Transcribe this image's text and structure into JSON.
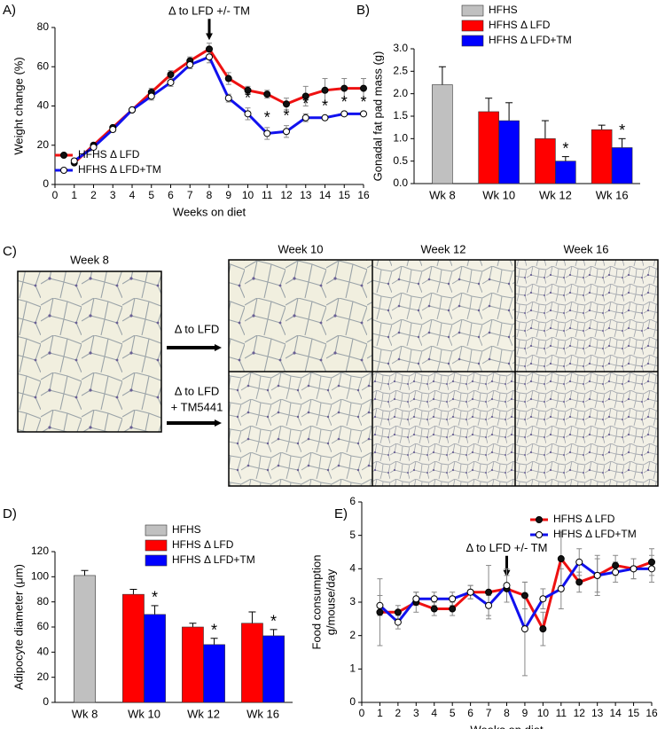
{
  "chart_data": [
    {
      "type": "line",
      "panel_label": "A)",
      "xlabel": "Weeks on diet",
      "ylabel": "Weight change (%)",
      "x": [
        1,
        2,
        3,
        4,
        5,
        6,
        7,
        8,
        9,
        10,
        11,
        12,
        13,
        14,
        15,
        16
      ],
      "xlim": [
        0,
        16
      ],
      "xticks": [
        0,
        1,
        2,
        3,
        4,
        5,
        6,
        7,
        8,
        9,
        10,
        11,
        12,
        13,
        14,
        15,
        16
      ],
      "ylim": [
        0,
        80
      ],
      "yticks": [
        0,
        20,
        40,
        60,
        80
      ],
      "legend": "lower left",
      "annotation": {
        "text": "Δ to LFD +/- TM",
        "x": 8,
        "y": 88
      },
      "series": [
        {
          "name": "HFHS Δ LFD",
          "color": "#ee1111",
          "marker_color": "#111111",
          "values": [
            11,
            20,
            29,
            38,
            47,
            56,
            63,
            69,
            54,
            48,
            46,
            41,
            45,
            48,
            49,
            49
          ],
          "errors": [
            1,
            1,
            1,
            1,
            2,
            2,
            2,
            3,
            3,
            2,
            2,
            3,
            5,
            6,
            5,
            5
          ]
        },
        {
          "name": "HFHS Δ LFD+TM",
          "color": "#1111ee",
          "marker_color": "#ffffff",
          "values": [
            12,
            19,
            28,
            38,
            45,
            52,
            61,
            65,
            44,
            36,
            26,
            27,
            34,
            34,
            36,
            36
          ],
          "errors": [
            1,
            1,
            1,
            1,
            2,
            2,
            2,
            3,
            2,
            3,
            3,
            3,
            2,
            1,
            1,
            1
          ],
          "significance": [
            null,
            null,
            null,
            null,
            null,
            null,
            null,
            null,
            null,
            "*",
            "*",
            "*",
            "*",
            "*",
            "*",
            "*"
          ]
        }
      ]
    },
    {
      "type": "bar",
      "panel_label": "B)",
      "ylabel": "Gonadal fat pad mass (g)",
      "categories": [
        "Wk 8",
        "Wk 10",
        "Wk 12",
        "Wk 16"
      ],
      "ylim": [
        0,
        3
      ],
      "yticks": [
        {
          "value": 0,
          "label": "0.0"
        },
        0.5,
        {
          "value": 1,
          "label": "1.0"
        },
        1.5,
        {
          "value": 2,
          "label": "2.0"
        },
        2.5,
        {
          "value": 3,
          "label": "3.0"
        }
      ],
      "legend": "top",
      "series": [
        {
          "name": "HFHS",
          "color": "#c0c0c0",
          "values": [
            2.2,
            null,
            null,
            null
          ],
          "errors": [
            0.4,
            null,
            null,
            null
          ]
        },
        {
          "name": "HFHS Δ LFD",
          "color": "#ff0000",
          "values": [
            null,
            1.6,
            1.0,
            1.2
          ],
          "errors": [
            null,
            0.3,
            0.4,
            0.1
          ]
        },
        {
          "name": "HFHS Δ LFD+TM",
          "color": "#0000ff",
          "values": [
            null,
            1.4,
            0.5,
            0.8
          ],
          "errors": [
            null,
            0.4,
            0.1,
            0.2
          ],
          "significance": [
            null,
            null,
            "*",
            "*"
          ]
        }
      ]
    },
    {
      "type": "bar",
      "panel_label": "D)",
      "ylabel": "Adipocyte diameter (μm)",
      "categories": [
        "Wk 8",
        "Wk 10",
        "Wk 12",
        "Wk 16"
      ],
      "ylim": [
        0,
        120
      ],
      "yticks": [
        0,
        20,
        40,
        60,
        80,
        100,
        120
      ],
      "legend": "top",
      "series": [
        {
          "name": "HFHS",
          "color": "#c0c0c0",
          "values": [
            101,
            null,
            null,
            null
          ],
          "errors": [
            4,
            null,
            null,
            null
          ]
        },
        {
          "name": "HFHS Δ LFD",
          "color": "#ff0000",
          "values": [
            null,
            86,
            60,
            63
          ],
          "errors": [
            null,
            4,
            3,
            9
          ]
        },
        {
          "name": "HFHS Δ LFD+TM",
          "color": "#0000ff",
          "values": [
            null,
            70,
            46,
            53
          ],
          "errors": [
            null,
            7,
            5,
            5
          ],
          "significance": [
            null,
            "*",
            "*",
            "*"
          ]
        }
      ]
    },
    {
      "type": "line",
      "panel_label": "E)",
      "xlabel": "Weeks on diet",
      "ylabel": [
        "Food consumption",
        "g/mouse/day"
      ],
      "x": [
        1,
        2,
        3,
        4,
        5,
        6,
        7,
        8,
        9,
        10,
        11,
        12,
        13,
        14,
        15,
        16
      ],
      "xlim": [
        0,
        16
      ],
      "xticks": [
        0,
        1,
        2,
        3,
        4,
        5,
        6,
        7,
        8,
        9,
        10,
        11,
        12,
        13,
        14,
        15,
        16
      ],
      "ylim": [
        0,
        6
      ],
      "yticks": [
        0,
        1,
        2,
        3,
        4,
        5,
        6
      ],
      "legend": "upper right",
      "annotation": {
        "text": "Δ to LFD +/- TM",
        "x": 8,
        "y": 4.6
      },
      "series": [
        {
          "name": "HFHS Δ LFD",
          "color": "#ee1111",
          "marker_color": "#111111",
          "values": [
            2.7,
            2.7,
            3.0,
            2.8,
            2.8,
            3.3,
            3.3,
            3.4,
            3.2,
            2.2,
            4.3,
            3.6,
            3.8,
            4.1,
            4.0,
            4.2
          ],
          "errors": [
            1.0,
            0.2,
            0.3,
            0.2,
            0.2,
            0.2,
            0.8,
            0.4,
            0.4,
            0.5,
            0.8,
            0.3,
            0.5,
            0.3,
            0.3,
            0.4
          ]
        },
        {
          "name": "HFHS Δ LFD+TM",
          "color": "#1111ee",
          "marker_color": "#ffffff",
          "values": [
            2.9,
            2.4,
            3.1,
            3.1,
            3.1,
            3.3,
            2.9,
            3.5,
            2.2,
            3.1,
            3.4,
            4.2,
            3.8,
            3.9,
            4.0,
            4.0
          ],
          "errors": [
            0.3,
            0.2,
            0.2,
            0.2,
            0.2,
            0.2,
            0.3,
            0.5,
            1.4,
            0.3,
            0.6,
            0.4,
            0.6,
            0.3,
            0.3,
            0.4
          ]
        }
      ]
    }
  ],
  "micrographs": {
    "panel_label": "C)",
    "reference": "Week 8",
    "columns": [
      "Week 10",
      "Week 12",
      "Week 16"
    ],
    "rows": [
      [
        "Δ to LFD"
      ],
      [
        "Δ to LFD",
        "+ TM5441"
      ]
    ]
  }
}
